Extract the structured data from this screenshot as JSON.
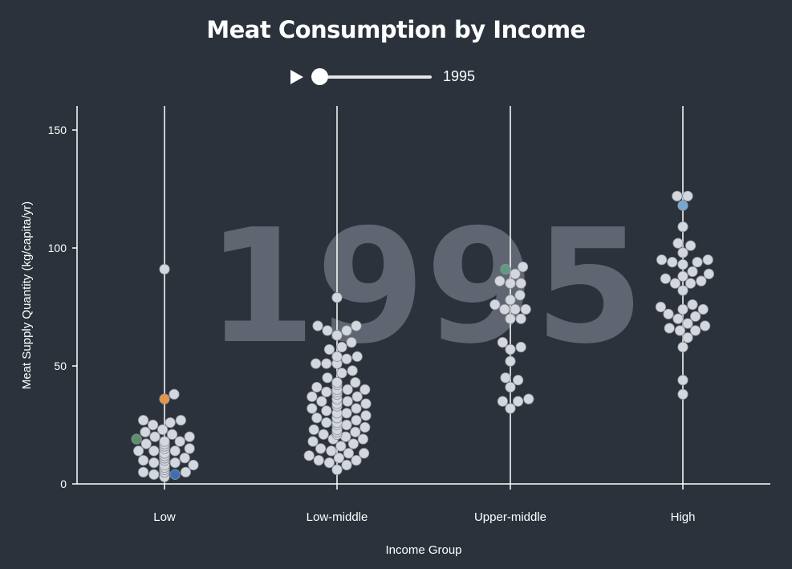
{
  "title": "Meat Consumption by Income",
  "player": {
    "year": "1995",
    "play_icon": "play-icon",
    "slider_position": 0
  },
  "colors": {
    "background": "#2b323c",
    "point": "#d4d7dd",
    "highlight_orange": "#e8934a",
    "highlight_green": "#5e8f6a",
    "highlight_yellow": "#c4c27a",
    "highlight_blue": "#3d6fb4",
    "highlight_teal": "#5f9a82",
    "highlight_lightblue": "#78a8d0"
  },
  "chart_data": {
    "type": "scatter",
    "subtype": "beeswarm",
    "title": "Meat Consumption by Income",
    "watermark": "1995",
    "xlabel": "Income Group",
    "ylabel": "Meat Supply Quantity (kg/capita/yr)",
    "ylim": [
      0,
      160
    ],
    "yticks": [
      "0",
      "50",
      "100",
      "150"
    ],
    "categories": [
      "Low",
      "Low-middle",
      "Upper-middle",
      "High"
    ],
    "grid": "vertical lines at each category",
    "series": [
      {
        "category": "Low",
        "values": [
          91,
          38,
          36,
          27,
          27,
          26,
          25,
          23,
          22,
          21,
          20,
          20,
          19,
          18,
          18,
          17,
          17,
          17,
          17,
          17,
          16,
          16,
          15,
          15,
          14,
          14,
          14,
          13,
          13,
          13,
          13,
          12,
          12,
          12,
          12,
          12,
          12,
          12,
          12,
          11,
          11,
          11,
          11,
          11,
          11,
          11,
          11,
          10,
          10,
          10,
          10,
          9,
          9,
          8,
          8,
          8,
          7,
          7,
          7,
          7,
          6,
          6,
          6,
          6,
          5,
          5,
          5,
          5,
          4,
          4,
          3
        ],
        "highlights": [
          {
            "value": 36,
            "color": "highlight_orange"
          },
          {
            "value": 19,
            "color": "highlight_green"
          },
          {
            "value": 7,
            "color": "highlight_yellow"
          },
          {
            "value": 4,
            "color": "highlight_blue"
          }
        ]
      },
      {
        "category": "Low-middle",
        "values": [
          79,
          67,
          67,
          65,
          65,
          63,
          60,
          58,
          57,
          54,
          54,
          53,
          51,
          51,
          51,
          48,
          47,
          45,
          43,
          43,
          43,
          42,
          41,
          40,
          40,
          40,
          39,
          39,
          38,
          37,
          37,
          36,
          35,
          35,
          34,
          34,
          33,
          33,
          32,
          32,
          31,
          30,
          30,
          29,
          28,
          28,
          28,
          27,
          26,
          26,
          25,
          25,
          24,
          23,
          23,
          23,
          22,
          22,
          22,
          21,
          21,
          21,
          20,
          19,
          19,
          18,
          17,
          16,
          15,
          14,
          13,
          13,
          12,
          11,
          10,
          10,
          9,
          8,
          6
        ]
      },
      {
        "category": "Upper-middle",
        "values": [
          92,
          91,
          89,
          86,
          85,
          85,
          80,
          78,
          76,
          74,
          74,
          74,
          70,
          70,
          60,
          58,
          57,
          52,
          45,
          44,
          41,
          36,
          35,
          35,
          32
        ],
        "highlights": [
          {
            "value": 91,
            "color": "highlight_teal"
          }
        ]
      },
      {
        "category": "High",
        "values": [
          122,
          122,
          118,
          109,
          102,
          101,
          98,
          98,
          95,
          95,
          94,
          94,
          93,
          90,
          89,
          88,
          87,
          86,
          85,
          85,
          82,
          76,
          75,
          74,
          74,
          72,
          71,
          70,
          68,
          67,
          66,
          65,
          65,
          62,
          58,
          44,
          38
        ],
        "highlights": [
          {
            "value": 118,
            "color": "highlight_lightblue"
          }
        ]
      }
    ]
  }
}
